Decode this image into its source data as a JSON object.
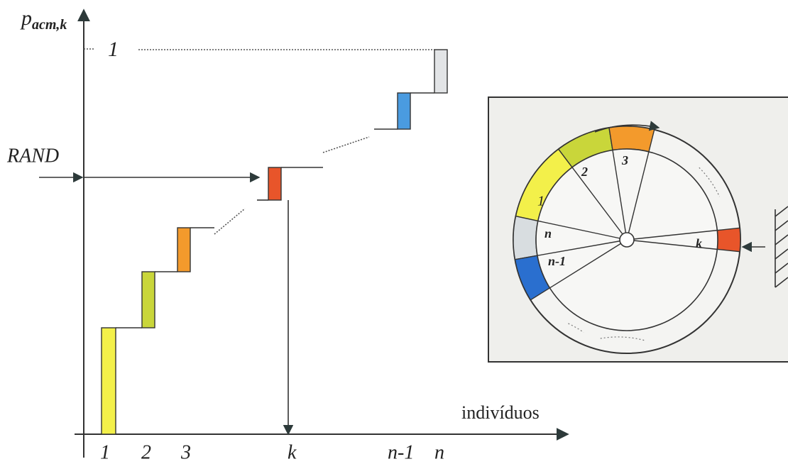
{
  "axis": {
    "y_label": "p",
    "y_label_sub": "acm,k",
    "y_top": "1",
    "rand": "RAND",
    "x_label": "indivíduos",
    "x_ticks": [
      "1",
      "2",
      "3",
      "k",
      "n-1",
      "n"
    ]
  },
  "wheel": {
    "segments": [
      "1",
      "2",
      "3",
      "n",
      "n-1",
      "k"
    ]
  }
}
